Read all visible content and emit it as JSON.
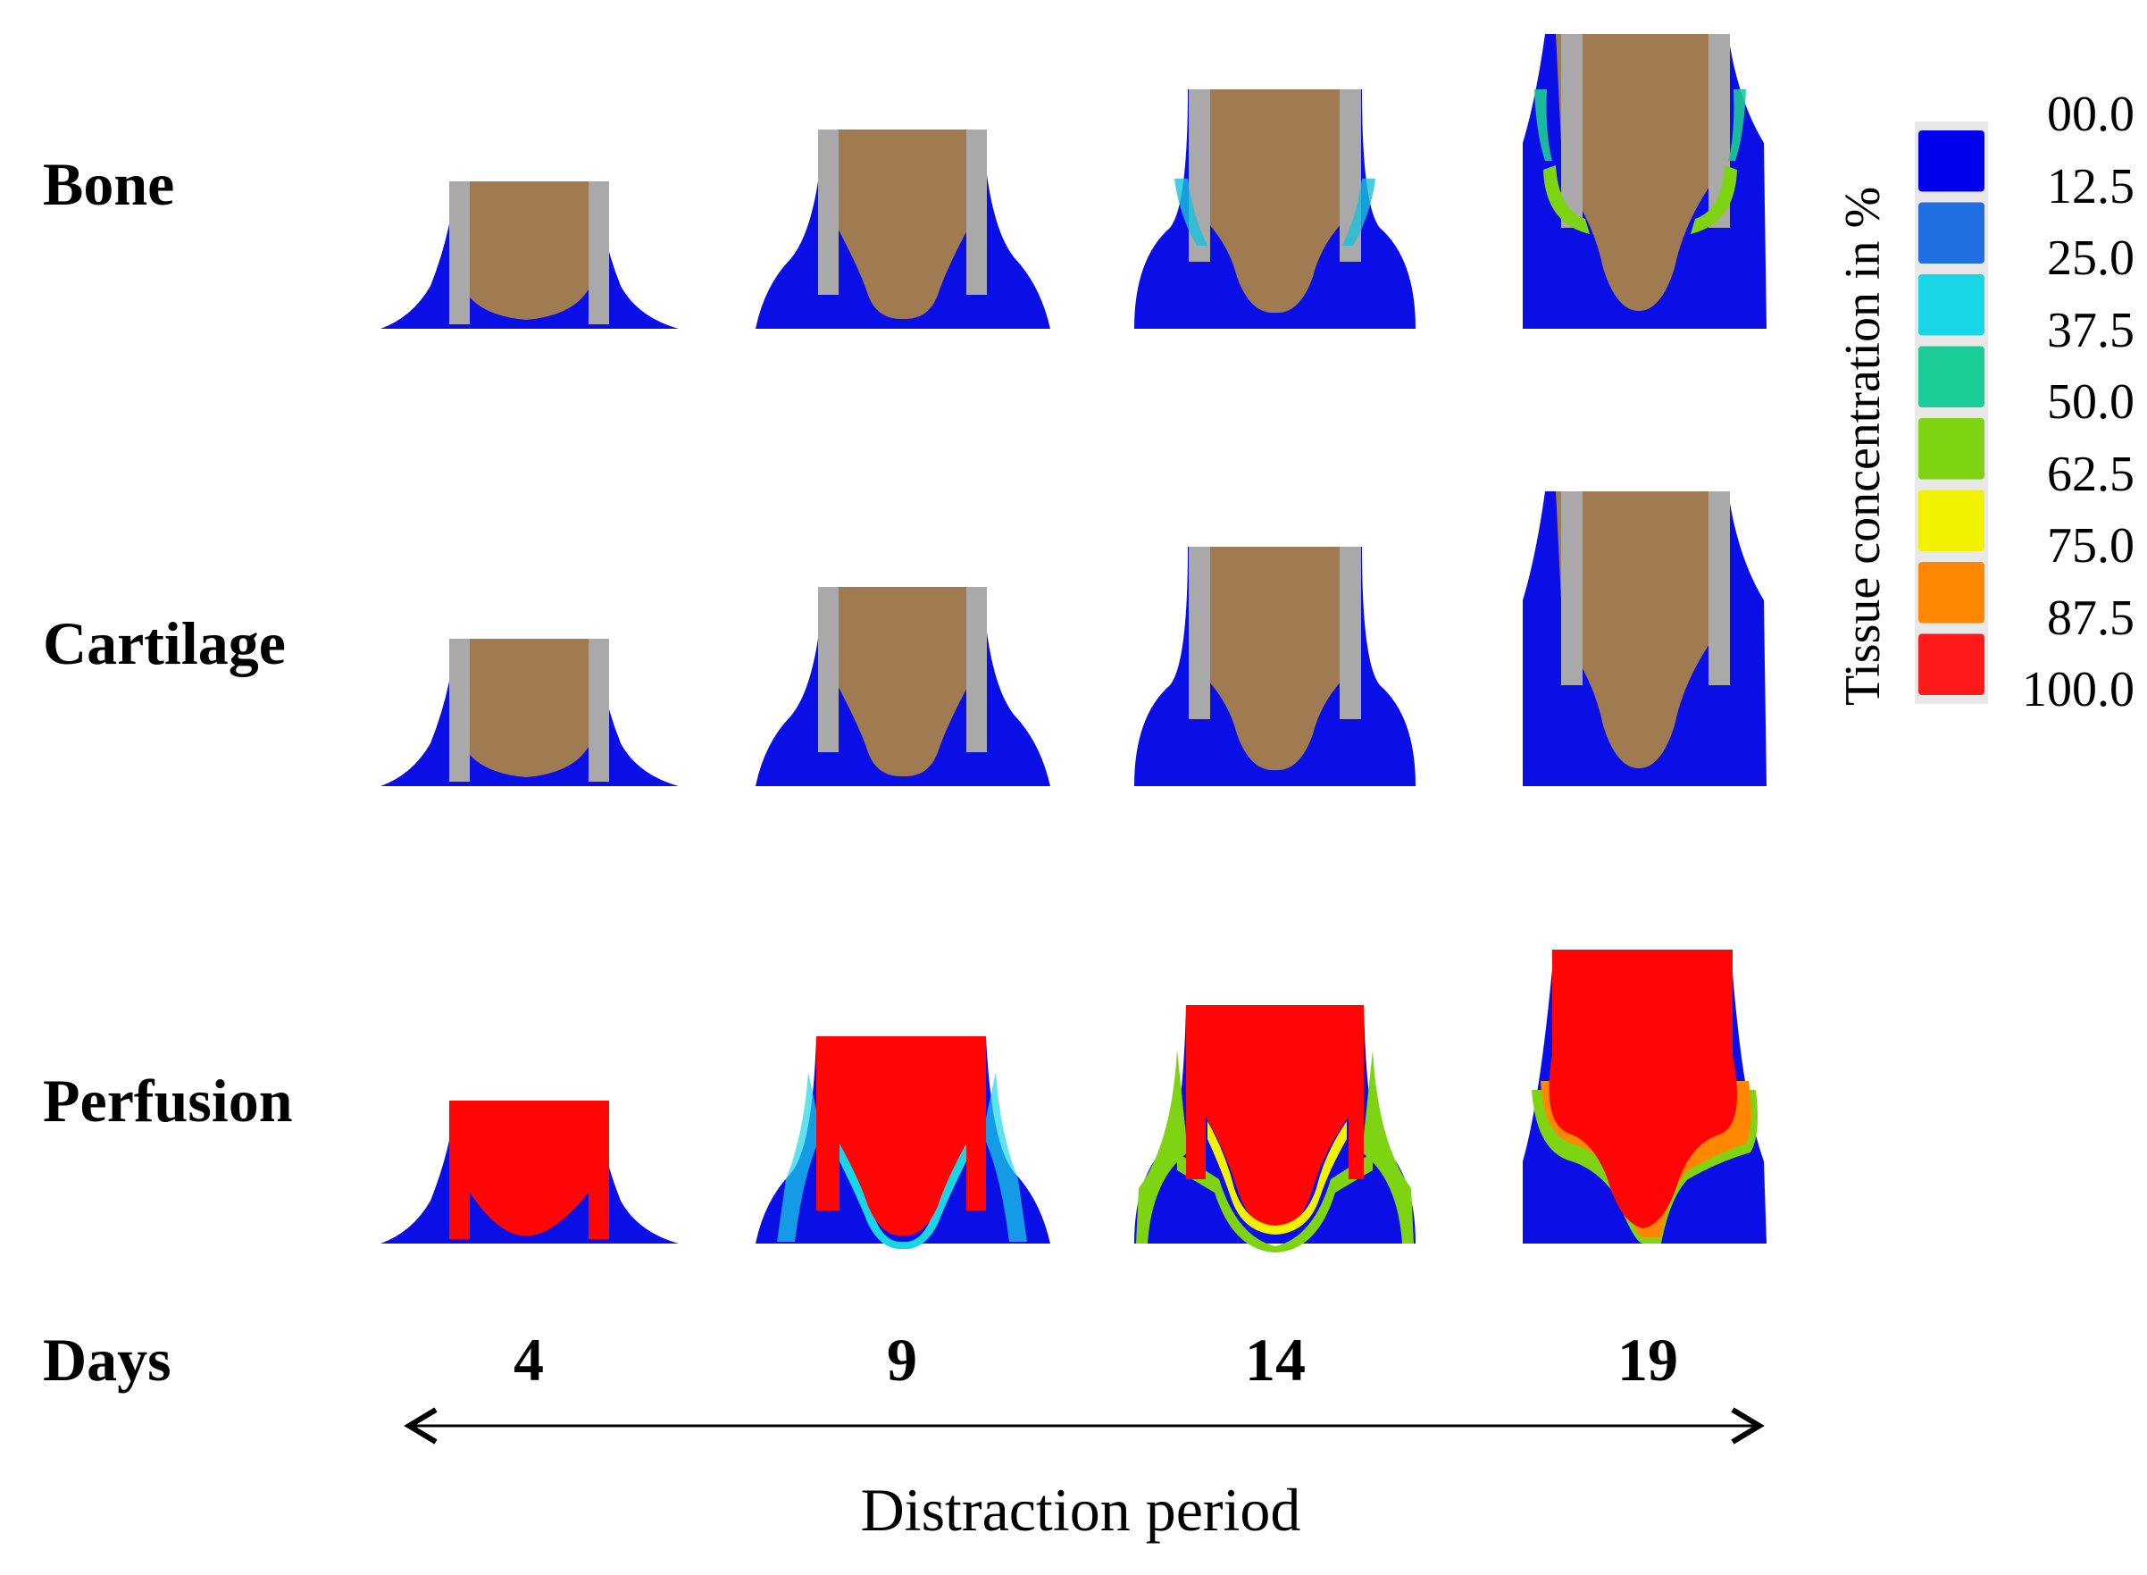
{
  "rows": [
    {
      "label": "Bone"
    },
    {
      "label": "Cartilage"
    },
    {
      "label": "Perfusion"
    }
  ],
  "days_label": "Days",
  "days": [
    "4",
    "9",
    "14",
    "19"
  ],
  "axis_title": "Distraction period",
  "legend": {
    "title": "Tissue concentration in %",
    "values": [
      "00.0",
      "12.5",
      "25.0",
      "37.5",
      "50.0",
      "62.5",
      "75.0",
      "87.5",
      "100.0"
    ],
    "colors": [
      "#0000ee",
      "#1f6fe0",
      "#19d6e6",
      "#1ccc96",
      "#7ed312",
      "#f2f200",
      "#ff8800",
      "#ff1a1a"
    ]
  },
  "colors": {
    "tissue_blue": "#0a0fe6",
    "bone_brown": "#a07a50",
    "pin_gray": "#a9a9a9",
    "perfusion_red": "#ff0505"
  }
}
